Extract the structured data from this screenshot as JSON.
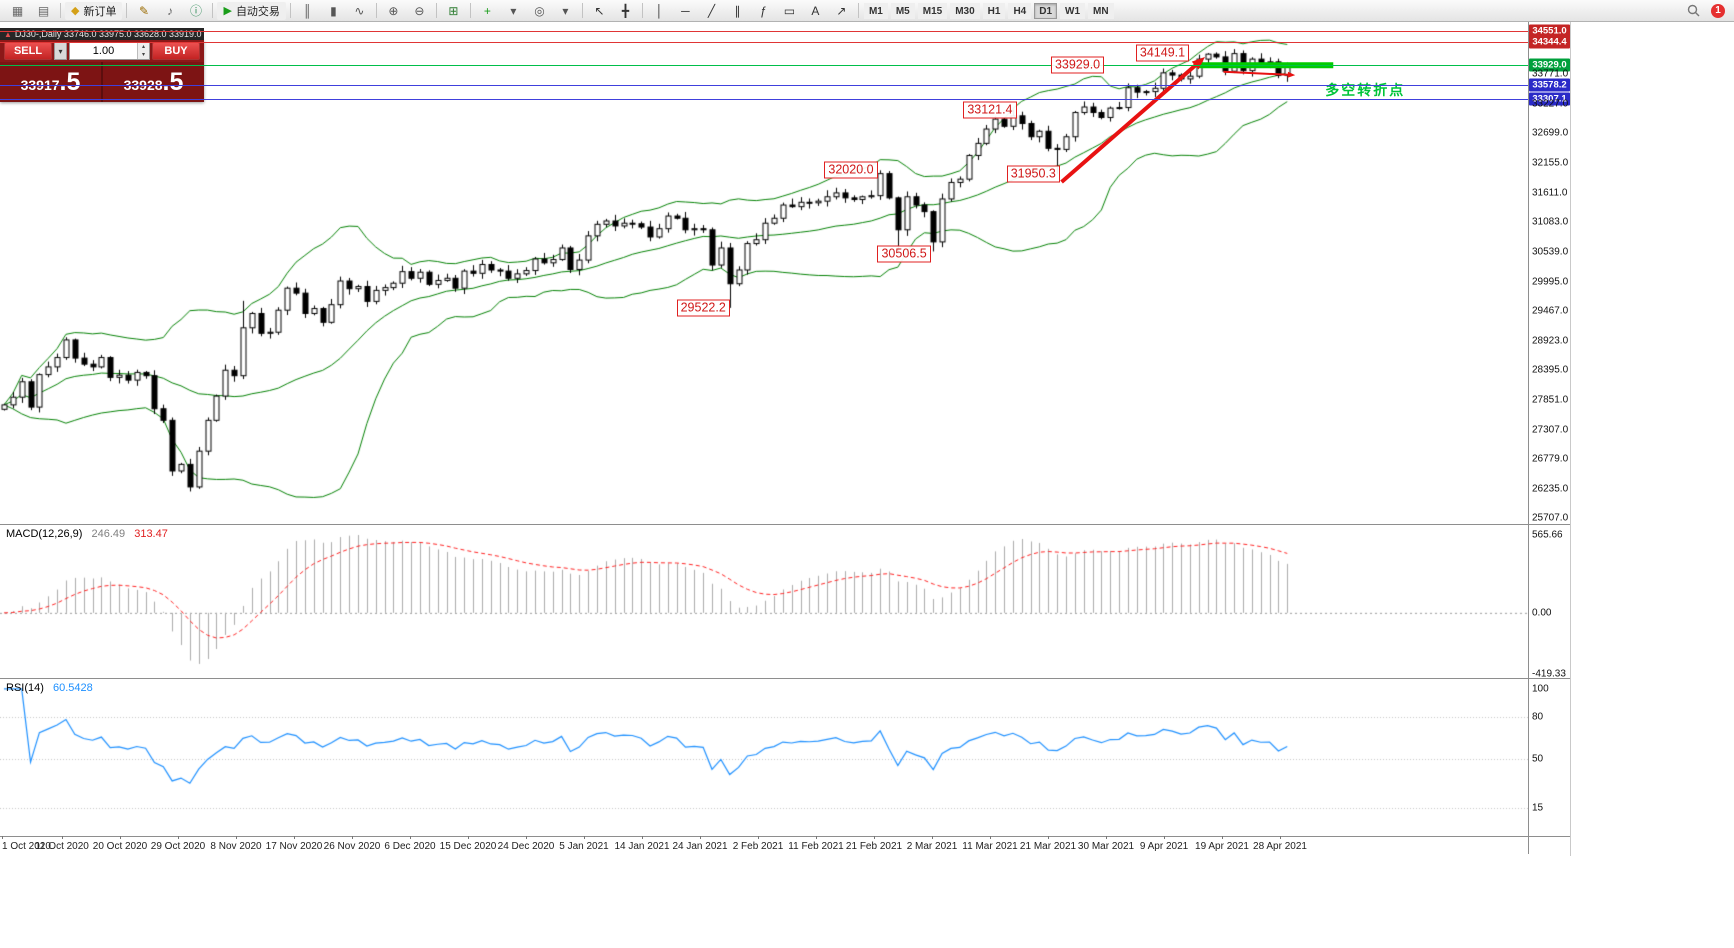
{
  "toolbar": {
    "new_order_label": "新订单",
    "auto_trading_label": "自动交易",
    "notification_count": "1",
    "timeframes": [
      "M1",
      "M5",
      "M15",
      "M30",
      "H1",
      "H4",
      "D1",
      "W1",
      "MN"
    ],
    "active_timeframe": "D1",
    "items": [
      {
        "name": "new-chart-icon",
        "glyph": "▦",
        "color": "#666"
      },
      {
        "name": "profiles-icon",
        "glyph": "▤",
        "color": "#666"
      },
      {
        "type": "sep"
      },
      {
        "type": "new-order"
      },
      {
        "type": "sep"
      },
      {
        "name": "metaeditor-icon",
        "glyph": "✎",
        "color": "#9a6b00"
      },
      {
        "name": "alerts-icon",
        "glyph": "♪",
        "color": "#666"
      },
      {
        "name": "community-icon",
        "glyph": "ⓘ",
        "color": "#2e8b57"
      },
      {
        "type": "sep"
      },
      {
        "type": "auto-trading"
      },
      {
        "type": "sep"
      },
      {
        "name": "bar-chart-mode-icon",
        "glyph": "║",
        "color": "#555"
      },
      {
        "name": "candlestick-mode-icon",
        "glyph": "▮",
        "color": "#555"
      },
      {
        "name": "line-chart-mode-icon",
        "glyph": "∿",
        "color": "#555"
      },
      {
        "type": "sep"
      },
      {
        "name": "zoom-in-icon",
        "glyph": "⊕",
        "color": "#555"
      },
      {
        "name": "zoom-out-icon",
        "glyph": "⊖",
        "color": "#555"
      },
      {
        "type": "sep"
      },
      {
        "name": "tile-windows-icon",
        "glyph": "⊞",
        "color": "#2e7d32"
      },
      {
        "type": "sep"
      },
      {
        "name": "indicators-icon",
        "glyph": "+",
        "color": "#1b9e1b"
      },
      {
        "name": "indicators-dropdown-icon",
        "glyph": "▾",
        "color": "#555"
      },
      {
        "name": "cycles-icon",
        "glyph": "◎",
        "color": "#555"
      },
      {
        "name": "cycles-dropdown-icon",
        "glyph": "▾",
        "color": "#555"
      },
      {
        "type": "sep"
      },
      {
        "name": "cursor-icon",
        "glyph": "↖",
        "color": "#333"
      },
      {
        "name": "crosshair-icon",
        "glyph": "╋",
        "color": "#333"
      },
      {
        "type": "sep"
      },
      {
        "name": "vertical-line-icon",
        "glyph": "│",
        "color": "#333"
      },
      {
        "name": "horizontal-line-icon",
        "glyph": "─",
        "color": "#333"
      },
      {
        "name": "trendline-icon",
        "glyph": "╱",
        "color": "#333"
      },
      {
        "name": "channel-icon",
        "glyph": "∥",
        "color": "#333"
      },
      {
        "name": "fibonacci-icon",
        "glyph": "ƒ",
        "color": "#333"
      },
      {
        "name": "shapes-icon",
        "glyph": "▭",
        "color": "#333"
      },
      {
        "name": "text-icon",
        "glyph": "A",
        "color": "#333"
      },
      {
        "name": "arrows-icon",
        "glyph": "↗",
        "color": "#333"
      },
      {
        "type": "sep"
      },
      {
        "type": "timeframes"
      },
      {
        "type": "spring"
      },
      {
        "type": "search"
      },
      {
        "type": "badge"
      }
    ]
  },
  "chart": {
    "title": "DJ30-,Daily 33746.0 33975.0 33628.0 33919.0"
  },
  "trade_panel": {
    "sell_label": "SELL",
    "buy_label": "BUY",
    "volume": "1.00",
    "sell_price_int": "33917",
    "sell_price_dec": ".5",
    "buy_price_int": "33928",
    "buy_price_dec": ".5"
  },
  "chart_data": {
    "type": "candlestick",
    "symbol": "DJ30-",
    "timeframe": "Daily",
    "title": "DJ30-,Daily",
    "last_candle": {
      "open": 33746.0,
      "high": 33975.0,
      "low": 33628.0,
      "close": 33919.0
    },
    "closes": [
      27760,
      27900,
      28180,
      27720,
      28310,
      28450,
      28620,
      28940,
      28610,
      28500,
      28450,
      28620,
      28260,
      28300,
      28210,
      28350,
      28290,
      27690,
      27480,
      26560,
      26680,
      26270,
      26920,
      27480,
      27920,
      28390,
      28290,
      29160,
      29420,
      29060,
      29080,
      29480,
      29880,
      29790,
      29420,
      29510,
      29260,
      29580,
      30010,
      29870,
      29910,
      29640,
      29840,
      29890,
      29970,
      30180,
      30060,
      30170,
      29950,
      30020,
      30060,
      29880,
      30190,
      30150,
      30310,
      30210,
      30190,
      30060,
      30140,
      30200,
      30410,
      30340,
      30400,
      30610,
      30220,
      30390,
      30830,
      31040,
      31100,
      31010,
      31060,
      31050,
      30990,
      30810,
      30960,
      31190,
      31150,
      30940,
      30960,
      30940,
      30300,
      30610,
      29960,
      30210,
      30690,
      30760,
      31060,
      31150,
      31390,
      31360,
      31440,
      31430,
      31460,
      31540,
      31610,
      31520,
      31490,
      31540,
      31560,
      31960,
      31520,
      30940,
      31540,
      31390,
      31270,
      30720,
      31500,
      31800,
      31860,
      32290,
      32510,
      32770,
      32950,
      32820,
      33010,
      32870,
      32630,
      32730,
      32420,
      32400,
      32630,
      33070,
      33170,
      33070,
      32980,
      33150,
      33160,
      33520,
      33440,
      33450,
      33510,
      33790,
      33750,
      33680,
      33730,
      34040,
      34130,
      34080,
      33820,
      34140,
      33830,
      34040,
      33980,
      33990,
      33745,
      33919
    ],
    "wick_overrides": {
      "27": {
        "high": 29650
      },
      "82": {
        "low": 29522.2
      },
      "99": {
        "high": 32020.0
      },
      "101": {
        "low": 30506.5
      },
      "105": {
        "low": 30547
      },
      "114": {
        "high": 33121.4
      },
      "119": {
        "low": 31950.3
      },
      "136": {
        "high": 34149.1
      }
    },
    "indicators": {
      "bollinger": {
        "period": 20,
        "deviation": 2,
        "color": "#008000"
      },
      "macd": {
        "label": "MACD(12,26,9)",
        "value_main": "246.49",
        "value_signal": "313.47",
        "axis": [
          "565.66",
          "0.00",
          "-419.33"
        ],
        "axis_max": 565.66,
        "axis_min": -419.33
      },
      "rsi": {
        "label": "RSI(14)",
        "value": "60.5428",
        "axis": [
          "100",
          "80",
          "50",
          "15"
        ],
        "axis_values": [
          100,
          80,
          50,
          15
        ],
        "levels": [
          80,
          50,
          15
        ]
      }
    },
    "levels": [
      {
        "price": 34551.0,
        "label": "34551.0",
        "color": "#e03535",
        "badge_bg": "#c42525"
      },
      {
        "price": 34344.4,
        "label": "34344.4",
        "color": "#e03535",
        "badge_bg": "#c42525"
      },
      {
        "price": 33929.0,
        "label": "33929.0",
        "color": "#00bf4a",
        "badge_bg": "#00a03c"
      },
      {
        "price": 33578.2,
        "label": "33578.2",
        "color": "#4040dd",
        "badge_bg": "#2a2ac8"
      },
      {
        "price": 33307.1,
        "label": "33307.1",
        "color": "#4040dd",
        "badge_bg": "#2a2ac8"
      }
    ],
    "y_ticks": [
      {
        "label": "33771.0",
        "value": 33771
      },
      {
        "label": "33227.0",
        "value": 33227
      },
      {
        "label": "32699.0",
        "value": 32699
      },
      {
        "label": "32155.0",
        "value": 32155
      },
      {
        "label": "31611.0",
        "value": 31611
      },
      {
        "label": "31083.0",
        "value": 31083
      },
      {
        "label": "30539.0",
        "value": 30539
      },
      {
        "label": "29995.0",
        "value": 29995
      },
      {
        "label": "29467.0",
        "value": 29467
      },
      {
        "label": "28923.0",
        "value": 28923
      },
      {
        "label": "28395.0",
        "value": 28395
      },
      {
        "label": "27851.0",
        "value": 27851
      },
      {
        "label": "27307.0",
        "value": 27307
      },
      {
        "label": "26779.0",
        "value": 26779
      },
      {
        "label": "26235.0",
        "value": 26235
      },
      {
        "label": "25707.0",
        "value": 25707
      }
    ],
    "x_labels": [
      "1 Oct 2020",
      "11 Oct 2020",
      "20 Oct 2020",
      "29 Oct 2020",
      "8 Nov 2020",
      "17 Nov 2020",
      "26 Nov 2020",
      "6 Dec 2020",
      "15 Dec 2020",
      "24 Dec 2020",
      "5 Jan 2021",
      "14 Jan 2021",
      "24 Jan 2021",
      "2 Feb 2021",
      "11 Feb 2021",
      "21 Feb 2021",
      "2 Mar 2021",
      "11 Mar 2021",
      "21 Mar 2021",
      "30 Mar 2021",
      "9 Apr 2021",
      "19 Apr 2021",
      "28 Apr 2021"
    ],
    "annotations": [
      {
        "text": "29522.2",
        "bar": 76.0,
        "price": 29522.2
      },
      {
        "text": "30506.5",
        "bar": 98.7,
        "price": 30506.5
      },
      {
        "text": "32020.0",
        "bar": 92.7,
        "price": 32020.0
      },
      {
        "text": "31950.3",
        "bar": 113.3,
        "price": 31950.3
      },
      {
        "text": "33121.4",
        "bar": 108.4,
        "price": 33121.4
      },
      {
        "text": "33929.0",
        "bar": 118.3,
        "price": 33929.0
      },
      {
        "text": "34149.1",
        "bar": 127.9,
        "price": 34149.1
      }
    ],
    "drawings": {
      "trend_arrow": {
        "from_bar": 119.5,
        "from_price": 31808,
        "to_bar": 135.7,
        "to_price": 34078,
        "color": "#e81212",
        "width": 4
      },
      "pullback_arrow": {
        "from_bar": 137.8,
        "from_price": 33810,
        "to_bar": 145.9,
        "to_price": 33750,
        "color": "#e81212",
        "width": 2
      },
      "green_segment": {
        "from_bar": 134.8,
        "to_bar": 150.2,
        "price": 33929,
        "color": "#00cc00",
        "width": 6
      },
      "note": {
        "text": "多空转折点",
        "bar": 149.3,
        "price": 33480,
        "color": "#00c438"
      }
    }
  }
}
